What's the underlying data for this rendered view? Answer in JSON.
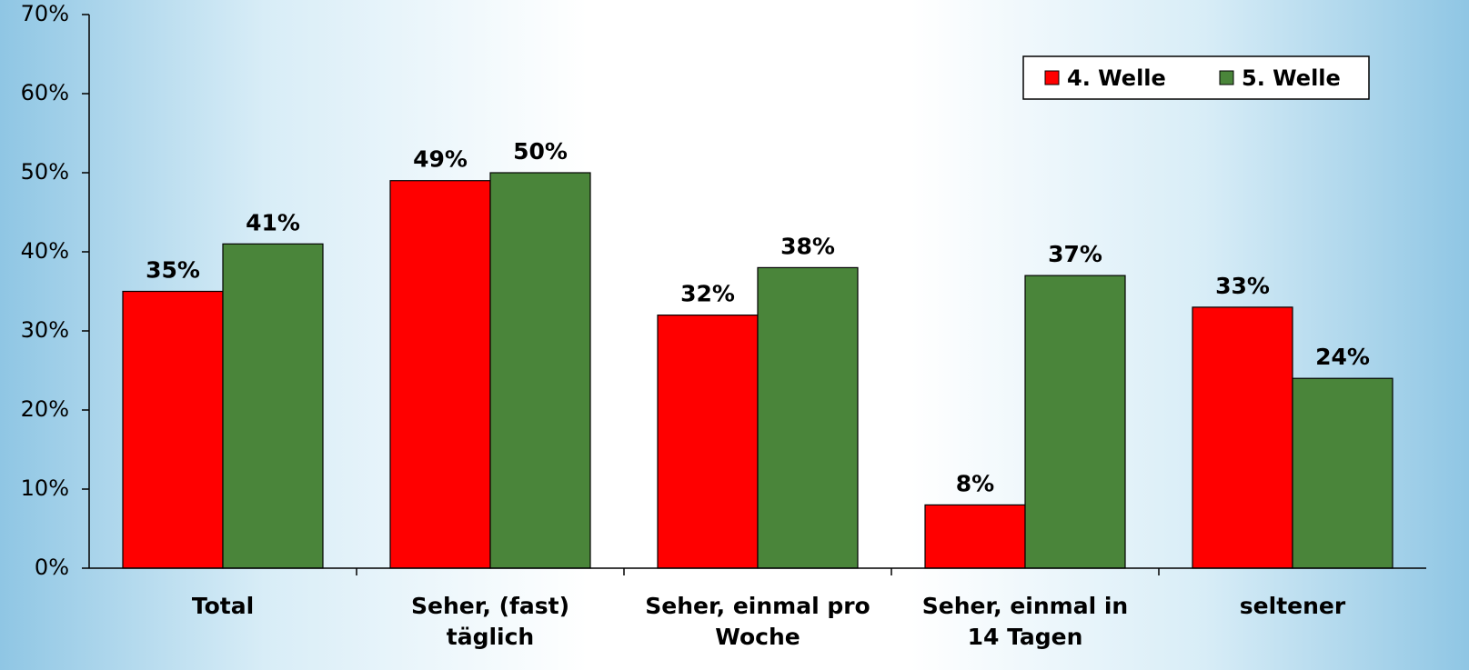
{
  "chart_data": {
    "type": "bar",
    "categories": [
      "Total",
      "Seher, (fast)\ntäglich",
      "Seher, einmal pro\nWoche",
      "Seher, einmal in\n14 Tagen",
      "seltener"
    ],
    "series": [
      {
        "name": "4. Welle",
        "color": "#ff0000",
        "values": [
          35,
          49,
          32,
          8,
          33
        ],
        "value_labels": [
          "35%",
          "49%",
          "32%",
          "8%",
          "33%"
        ]
      },
      {
        "name": "5. Welle",
        "color": "#4a853a",
        "values": [
          41,
          50,
          38,
          37,
          24
        ],
        "value_labels": [
          "41%",
          "50%",
          "38%",
          "37%",
          "24%"
        ]
      }
    ],
    "ylim": [
      0,
      70
    ],
    "yticks": [
      {
        "value": 0,
        "label": "0%"
      },
      {
        "value": 10,
        "label": "10%"
      },
      {
        "value": 20,
        "label": "20%"
      },
      {
        "value": 30,
        "label": "30%"
      },
      {
        "value": 40,
        "label": "40%"
      },
      {
        "value": 50,
        "label": "50%"
      },
      {
        "value": 60,
        "label": "60%"
      },
      {
        "value": 70,
        "label": "70%"
      }
    ],
    "legend": "top-right",
    "grid": false
  }
}
